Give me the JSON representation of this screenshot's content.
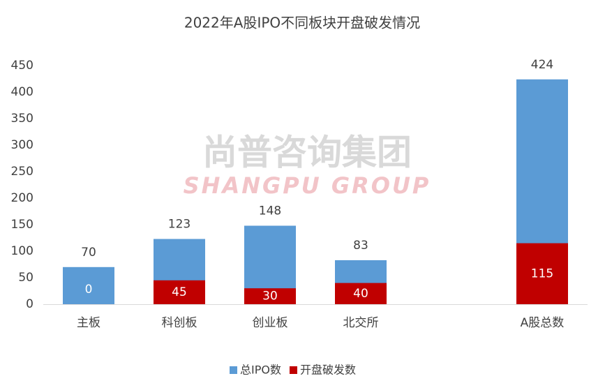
{
  "chart_data": {
    "type": "bar",
    "title": "2022年A股IPO不同板块开盘破发情况",
    "watermark": [
      "尚普咨询集团",
      "SHANGPU GROUP"
    ],
    "categories": [
      "主板",
      "科创板",
      "创业板",
      "北交所",
      null,
      "A股总数"
    ],
    "series": [
      {
        "name": "总IPO数",
        "color": "#5b9bd5",
        "values": [
          70,
          123,
          148,
          83,
          null,
          424
        ]
      },
      {
        "name": "开盘破发数",
        "color": "#c00000",
        "values": [
          0,
          45,
          30,
          40,
          null,
          115
        ]
      }
    ],
    "overlap": true,
    "ylim": [
      0,
      450
    ],
    "yticks": [
      0,
      50,
      100,
      150,
      200,
      250,
      300,
      350,
      400,
      450
    ],
    "grid": false
  }
}
